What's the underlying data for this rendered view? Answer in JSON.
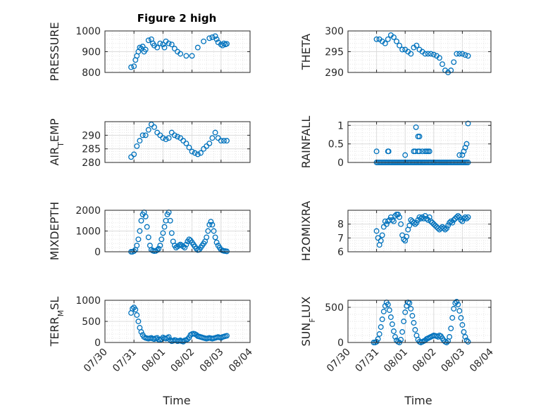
{
  "figure": {
    "title": "Figure 2 high"
  },
  "chart_data": [
    {
      "type": "scatter",
      "title": "Figure 2 high",
      "ylabel": "PRESSURE",
      "ylabel_sub": "",
      "ylabel_rest": "",
      "xlabel": "",
      "xlim": [
        "07/30",
        "08/04"
      ],
      "ylim": [
        800,
        1000
      ],
      "yticks": [
        800,
        900,
        1000
      ],
      "xticks": [
        "07/30",
        "07/31",
        "08/01",
        "08/02",
        "08/03",
        "08/04"
      ],
      "grid": "on",
      "marker": "circle",
      "color": "#0072bd",
      "x": [
        0.9,
        1.0,
        1.05,
        1.1,
        1.15,
        1.2,
        1.25,
        1.3,
        1.35,
        1.4,
        1.5,
        1.6,
        1.65,
        1.7,
        1.8,
        1.9,
        2.0,
        2.05,
        2.1,
        2.2,
        2.3,
        2.4,
        2.5,
        2.6,
        2.8,
        3.0,
        3.2,
        3.4,
        3.6,
        3.7,
        3.8,
        3.85,
        3.9,
        4.0,
        4.05,
        4.1,
        4.15,
        4.2
      ],
      "y": [
        825,
        830,
        860,
        880,
        900,
        920,
        915,
        925,
        900,
        910,
        955,
        960,
        940,
        930,
        920,
        940,
        935,
        920,
        950,
        940,
        935,
        915,
        900,
        890,
        880,
        880,
        920,
        950,
        965,
        970,
        975,
        960,
        945,
        935,
        930,
        940,
        935,
        938
      ]
    },
    {
      "type": "scatter",
      "ylabel": "THETA",
      "ylabel_sub": "",
      "ylabel_rest": "",
      "xlabel": "",
      "xlim": [
        "07/30",
        "08/04"
      ],
      "ylim": [
        290,
        300
      ],
      "yticks": [
        290,
        295,
        300
      ],
      "xticks": [
        "07/30",
        "07/31",
        "08/01",
        "08/02",
        "08/03",
        "08/04"
      ],
      "grid": "on",
      "marker": "circle",
      "color": "#0072bd",
      "x": [
        1.0,
        1.1,
        1.2,
        1.3,
        1.4,
        1.5,
        1.6,
        1.7,
        1.8,
        1.9,
        2.0,
        2.1,
        2.2,
        2.3,
        2.4,
        2.5,
        2.6,
        2.7,
        2.8,
        2.9,
        3.0,
        3.1,
        3.2,
        3.3,
        3.4,
        3.5,
        3.6,
        3.7,
        3.8,
        3.9,
        4.0,
        4.1,
        4.2
      ],
      "y": [
        298,
        298,
        297.5,
        297,
        298,
        299,
        298.5,
        297.5,
        296.5,
        295.5,
        295.5,
        295,
        294.5,
        296,
        296.5,
        295.5,
        295,
        294.5,
        294.5,
        294.5,
        294.3,
        294,
        293.5,
        292,
        290.5,
        290,
        290.5,
        292.5,
        294.5,
        294.5,
        294.5,
        294.2,
        294
      ]
    },
    {
      "type": "scatter",
      "ylabel": "AIR",
      "ylabel_sub": "T",
      "ylabel_rest": "EMP",
      "xlabel": "",
      "xlim": [
        "07/30",
        "08/04"
      ],
      "ylim": [
        280,
        295
      ],
      "yticks": [
        280,
        285,
        290
      ],
      "xticks": [
        "07/30",
        "07/31",
        "08/01",
        "08/02",
        "08/03",
        "08/04"
      ],
      "grid": "on",
      "marker": "circle",
      "color": "#0072bd",
      "x": [
        0.9,
        1.0,
        1.1,
        1.2,
        1.3,
        1.4,
        1.5,
        1.6,
        1.7,
        1.8,
        1.9,
        2.0,
        2.1,
        2.2,
        2.3,
        2.4,
        2.5,
        2.6,
        2.7,
        2.8,
        2.9,
        3.0,
        3.1,
        3.2,
        3.3,
        3.4,
        3.5,
        3.6,
        3.7,
        3.8,
        3.9,
        4.0,
        4.1,
        4.2
      ],
      "y": [
        282,
        283,
        286,
        288,
        290,
        290,
        292,
        294,
        293,
        291,
        290,
        289,
        288.5,
        289,
        291,
        290,
        289.5,
        289,
        288,
        287,
        285.5,
        284,
        283.5,
        283,
        283.5,
        285,
        286,
        287,
        289,
        291,
        289,
        288,
        288,
        288
      ]
    },
    {
      "type": "scatter",
      "ylabel": "RAINFALL",
      "ylabel_sub": "",
      "ylabel_rest": "",
      "xlabel": "",
      "xlim": [
        "07/30",
        "08/04"
      ],
      "ylim": [
        0,
        1.1
      ],
      "yticks": [
        0,
        0.5,
        1
      ],
      "xticks": [
        "07/30",
        "07/31",
        "08/01",
        "08/02",
        "08/03",
        "08/04"
      ],
      "grid": "on",
      "marker": "circle",
      "color": "#0072bd",
      "x": [
        1.0,
        1.05,
        1.1,
        1.15,
        1.2,
        1.25,
        1.3,
        1.35,
        1.4,
        1.45,
        1.5,
        1.55,
        1.6,
        1.65,
        1.7,
        1.75,
        1.8,
        1.85,
        1.9,
        1.95,
        2.0,
        2.05,
        2.1,
        2.15,
        2.2,
        2.25,
        2.3,
        2.35,
        2.4,
        2.45,
        2.5,
        2.55,
        2.6,
        2.65,
        2.7,
        2.75,
        2.8,
        2.85,
        2.9,
        2.95,
        3.0,
        3.05,
        3.1,
        3.15,
        3.2,
        3.25,
        3.3,
        3.35,
        3.4,
        3.45,
        3.5,
        3.55,
        3.6,
        3.65,
        3.7,
        3.75,
        3.8,
        3.85,
        3.9,
        3.95,
        4.0,
        4.05,
        4.1,
        4.15,
        4.2,
        1.0,
        1.4,
        1.42,
        2.0,
        2.3,
        2.35,
        2.45,
        2.5,
        2.6,
        2.7,
        2.75,
        2.85,
        3.0,
        3.9,
        4.0,
        4.05,
        4.1,
        4.15,
        4.2,
        2.38,
        2.45,
        2.5,
        2.8
      ],
      "y": [
        0,
        0,
        0,
        0,
        0,
        0,
        0,
        0,
        0,
        0,
        0,
        0,
        0,
        0,
        0,
        0,
        0,
        0,
        0,
        0,
        0,
        0,
        0,
        0,
        0,
        0,
        0,
        0,
        0,
        0,
        0,
        0,
        0,
        0,
        0,
        0,
        0,
        0,
        0,
        0,
        0,
        0,
        0,
        0,
        0,
        0,
        0,
        0,
        0,
        0,
        0,
        0,
        0,
        0,
        0,
        0,
        0,
        0,
        0,
        0,
        0,
        0,
        0,
        0,
        0,
        0.3,
        0.3,
        0.3,
        0.2,
        0.3,
        0.3,
        0.7,
        0.7,
        0.3,
        0.3,
        0.3,
        0.3,
        0,
        0.2,
        0.2,
        0.3,
        0.4,
        0.5,
        1.05,
        0.95,
        0.3,
        0.3,
        0.3
      ]
    },
    {
      "type": "scatter",
      "ylabel": "MIXDEPTH",
      "ylabel_sub": "",
      "ylabel_rest": "",
      "xlabel": "",
      "xlim": [
        "07/30",
        "08/04"
      ],
      "ylim": [
        0,
        2000
      ],
      "yticks": [
        0,
        1000,
        2000
      ],
      "xticks": [
        "07/30",
        "07/31",
        "08/01",
        "08/02",
        "08/03",
        "08/04"
      ],
      "grid": "on",
      "marker": "circle",
      "color": "#0072bd",
      "x": [
        0.9,
        0.95,
        1.0,
        1.05,
        1.1,
        1.15,
        1.2,
        1.25,
        1.3,
        1.35,
        1.4,
        1.45,
        1.5,
        1.55,
        1.6,
        1.65,
        1.7,
        1.75,
        1.8,
        1.85,
        1.9,
        1.95,
        2.0,
        2.05,
        2.1,
        2.15,
        2.2,
        2.25,
        2.3,
        2.35,
        2.4,
        2.45,
        2.5,
        2.55,
        2.6,
        2.65,
        2.7,
        2.75,
        2.8,
        2.85,
        2.9,
        2.95,
        3.0,
        3.05,
        3.1,
        3.15,
        3.2,
        3.25,
        3.3,
        3.35,
        3.4,
        3.45,
        3.5,
        3.55,
        3.6,
        3.65,
        3.7,
        3.75,
        3.8,
        3.85,
        3.9,
        3.95,
        4.0,
        4.05,
        4.1,
        4.15,
        4.2
      ],
      "y": [
        0,
        0,
        30,
        100,
        300,
        600,
        1000,
        1500,
        1800,
        1900,
        1700,
        1200,
        700,
        300,
        100,
        50,
        30,
        40,
        80,
        150,
        300,
        600,
        900,
        1200,
        1500,
        1800,
        1900,
        1500,
        900,
        500,
        300,
        200,
        250,
        300,
        350,
        300,
        250,
        200,
        350,
        500,
        600,
        550,
        450,
        350,
        250,
        150,
        80,
        100,
        200,
        300,
        400,
        500,
        700,
        1000,
        1300,
        1450,
        1300,
        1000,
        700,
        450,
        300,
        200,
        100,
        60,
        40,
        30,
        20
      ]
    },
    {
      "type": "scatter",
      "ylabel": "H2OMIXRA",
      "ylabel_sub": "",
      "ylabel_rest": "",
      "xlabel": "",
      "xlim": [
        "07/30",
        "08/04"
      ],
      "ylim": [
        6,
        9
      ],
      "yticks": [
        6,
        7,
        8
      ],
      "xticks": [
        "07/30",
        "07/31",
        "08/01",
        "08/02",
        "08/03",
        "08/04"
      ],
      "grid": "on",
      "marker": "circle",
      "color": "#0072bd",
      "x": [
        1.0,
        1.05,
        1.1,
        1.15,
        1.2,
        1.25,
        1.3,
        1.35,
        1.4,
        1.45,
        1.5,
        1.55,
        1.6,
        1.65,
        1.7,
        1.75,
        1.8,
        1.85,
        1.9,
        1.95,
        2.0,
        2.05,
        2.1,
        2.15,
        2.2,
        2.25,
        2.3,
        2.35,
        2.4,
        2.45,
        2.5,
        2.55,
        2.6,
        2.65,
        2.7,
        2.75,
        2.8,
        2.85,
        2.9,
        2.95,
        3.0,
        3.05,
        3.1,
        3.15,
        3.2,
        3.25,
        3.3,
        3.35,
        3.4,
        3.45,
        3.5,
        3.55,
        3.6,
        3.65,
        3.7,
        3.75,
        3.8,
        3.85,
        3.9,
        3.95,
        4.0,
        4.05,
        4.1,
        4.15,
        4.2
      ],
      "y": [
        7.5,
        7,
        6.5,
        6.8,
        7.2,
        7.8,
        8.2,
        8,
        8.2,
        8.3,
        8.5,
        8.3,
        8.2,
        8.6,
        8.7,
        8.7,
        8.5,
        8,
        7.2,
        6.9,
        6.8,
        7.1,
        7.6,
        7.9,
        8.3,
        8.2,
        8.1,
        8,
        8.1,
        8.3,
        8.5,
        8.4,
        8.5,
        8.4,
        8.6,
        8.4,
        8.3,
        8.5,
        8.2,
        8.1,
        8,
        7.9,
        7.8,
        7.7,
        7.6,
        7.7,
        7.8,
        7.7,
        7.6,
        7.7,
        7.9,
        8.1,
        8.2,
        8.1,
        8.3,
        8.4,
        8.5,
        8.6,
        8.5,
        8.3,
        8.2,
        8.4,
        8.5,
        8.4,
        8.5
      ]
    },
    {
      "type": "scatter",
      "ylabel": "TERR",
      "ylabel_sub": "M",
      "ylabel_rest": "SL",
      "xlabel": "Time",
      "xlim": [
        "07/30",
        "08/04"
      ],
      "ylim": [
        0,
        1000
      ],
      "yticks": [
        0,
        500,
        1000
      ],
      "xticks": [
        "07/30",
        "07/31",
        "08/01",
        "08/02",
        "08/03",
        "08/04"
      ],
      "grid": "on",
      "marker": "circle",
      "color": "#0072bd",
      "x": [
        0.9,
        0.95,
        1.0,
        1.05,
        1.1,
        1.15,
        1.2,
        1.25,
        1.3,
        1.35,
        1.4,
        1.45,
        1.5,
        1.55,
        1.6,
        1.65,
        1.7,
        1.75,
        1.8,
        1.85,
        1.9,
        1.95,
        2.0,
        2.05,
        2.1,
        2.15,
        2.2,
        2.25,
        2.3,
        2.35,
        2.4,
        2.45,
        2.5,
        2.55,
        2.6,
        2.65,
        2.7,
        2.75,
        2.8,
        2.85,
        2.9,
        2.95,
        3.0,
        3.05,
        3.1,
        3.15,
        3.2,
        3.25,
        3.3,
        3.35,
        3.4,
        3.45,
        3.5,
        3.55,
        3.6,
        3.65,
        3.7,
        3.75,
        3.8,
        3.85,
        3.9,
        3.95,
        4.0,
        4.05,
        4.1,
        4.15,
        4.2
      ],
      "y": [
        700,
        800,
        830,
        780,
        650,
        500,
        350,
        250,
        180,
        130,
        110,
        100,
        90,
        100,
        110,
        90,
        80,
        100,
        110,
        70,
        60,
        80,
        120,
        100,
        90,
        110,
        130,
        60,
        30,
        40,
        60,
        50,
        30,
        40,
        50,
        30,
        20,
        50,
        60,
        80,
        120,
        180,
        200,
        210,
        200,
        180,
        150,
        140,
        130,
        120,
        110,
        100,
        90,
        100,
        110,
        100,
        90,
        100,
        110,
        120,
        130,
        120,
        110,
        130,
        140,
        150,
        160
      ]
    },
    {
      "type": "scatter",
      "ylabel": "SUN",
      "ylabel_sub": "F",
      "ylabel_rest": "LUX",
      "xlabel": "Time",
      "xlim": [
        "07/30",
        "08/04"
      ],
      "ylim": [
        0,
        600
      ],
      "yticks": [
        0,
        500
      ],
      "xticks": [
        "07/30",
        "07/31",
        "08/01",
        "08/02",
        "08/03",
        "08/04"
      ],
      "grid": "on",
      "marker": "circle",
      "color": "#0072bd",
      "x": [
        0.9,
        0.95,
        1.0,
        1.05,
        1.1,
        1.15,
        1.2,
        1.25,
        1.3,
        1.35,
        1.4,
        1.45,
        1.5,
        1.55,
        1.6,
        1.65,
        1.7,
        1.75,
        1.8,
        1.85,
        1.9,
        1.95,
        2.0,
        2.05,
        2.1,
        2.15,
        2.2,
        2.25,
        2.3,
        2.35,
        2.4,
        2.45,
        2.5,
        2.55,
        2.6,
        2.65,
        2.7,
        2.75,
        2.8,
        2.85,
        2.9,
        2.95,
        3.0,
        3.05,
        3.1,
        3.15,
        3.2,
        3.25,
        3.3,
        3.35,
        3.4,
        3.45,
        3.5,
        3.55,
        3.6,
        3.65,
        3.7,
        3.75,
        3.8,
        3.85,
        3.9,
        3.95,
        4.0,
        4.05,
        4.1,
        4.15,
        4.2
      ],
      "y": [
        0,
        0,
        10,
        50,
        120,
        220,
        330,
        440,
        520,
        570,
        540,
        460,
        360,
        260,
        160,
        80,
        30,
        10,
        0,
        40,
        150,
        300,
        430,
        520,
        570,
        560,
        480,
        380,
        280,
        180,
        100,
        40,
        10,
        0,
        10,
        20,
        30,
        50,
        60,
        70,
        80,
        90,
        100,
        95,
        90,
        80,
        100,
        90,
        60,
        30,
        10,
        0,
        20,
        80,
        200,
        350,
        480,
        560,
        580,
        540,
        450,
        350,
        250,
        150,
        80,
        30,
        10
      ]
    }
  ]
}
